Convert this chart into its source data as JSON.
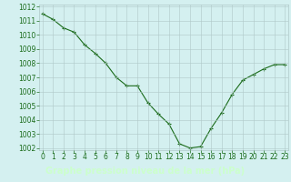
{
  "x": [
    0,
    1,
    2,
    3,
    4,
    5,
    6,
    7,
    8,
    9,
    10,
    11,
    12,
    13,
    14,
    15,
    16,
    17,
    18,
    19,
    20,
    21,
    22,
    23
  ],
  "y": [
    1011.5,
    1011.1,
    1010.5,
    1010.2,
    1009.3,
    1008.7,
    1008.0,
    1007.0,
    1006.4,
    1006.4,
    1005.2,
    1004.4,
    1003.7,
    1002.3,
    1002.0,
    1002.1,
    1003.4,
    1004.5,
    1005.8,
    1006.8,
    1007.2,
    1007.6,
    1007.9,
    1007.9
  ],
  "ylim": [
    1002,
    1012
  ],
  "yticks": [
    1002,
    1003,
    1004,
    1005,
    1006,
    1007,
    1008,
    1009,
    1010,
    1011,
    1012
  ],
  "xlim": [
    0,
    23
  ],
  "xticks": [
    0,
    1,
    2,
    3,
    4,
    5,
    6,
    7,
    8,
    9,
    10,
    11,
    12,
    13,
    14,
    15,
    16,
    17,
    18,
    19,
    20,
    21,
    22,
    23
  ],
  "line_color": "#1a6b1a",
  "marker": "+",
  "marker_size": 3,
  "background_color": "#d4f0f0",
  "label_bg_color": "#2a6b2a",
  "grid_color": "#b0c8c8",
  "xlabel": "Graphe pression niveau de la mer (hPa)",
  "xlabel_color": "#ccffcc",
  "xlabel_fontsize": 7,
  "tick_fontsize": 5.5,
  "tick_color": "#1a6b1a",
  "figsize": [
    3.2,
    2.0
  ],
  "dpi": 100
}
